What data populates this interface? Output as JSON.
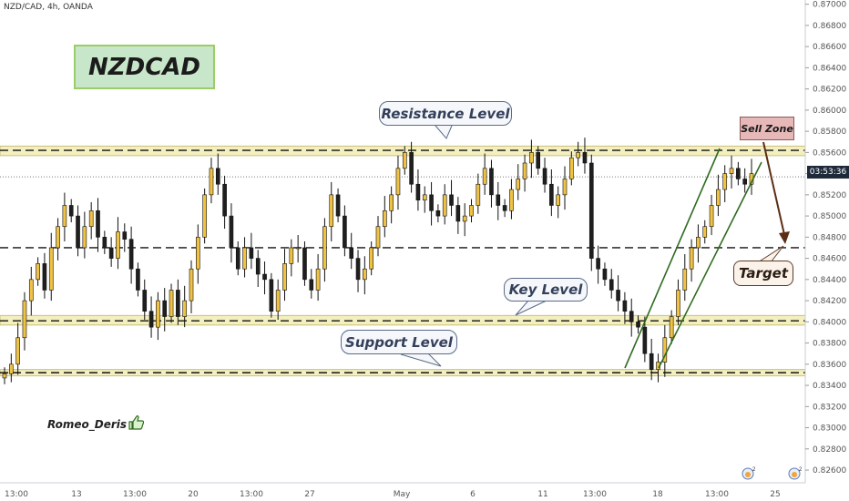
{
  "header": {
    "symbol": "NZD/CAD, 4h, OANDA"
  },
  "title": "NZDCAD",
  "callouts": {
    "resistance": "Resistance Level",
    "key": "Key Level",
    "support": "Support Level",
    "sell_zone": "Sell Zone",
    "target": "Target"
  },
  "signature": "Romeo_Deris",
  "current_price_label": "03:53:36",
  "event_badges": [
    "2",
    "2"
  ],
  "colors": {
    "zone_fill": "#f3efbf",
    "zone_border": "#c9c27a",
    "bull_candle": "#f0c244",
    "bear_candle": "#1f1f1f",
    "channel": "#2e6b1f",
    "arrow": "#5b2e15",
    "title_bg": "#c8e6c9"
  },
  "chart_data": {
    "type": "candlestick",
    "timeframe": "4h",
    "y_axis": {
      "ticks": [
        "0.87000",
        "0.86800",
        "0.86600",
        "0.86400",
        "0.86200",
        "0.86000",
        "0.85800",
        "0.85600",
        "0.85400",
        "0.85200",
        "0.85000",
        "0.84800",
        "0.84600",
        "0.84400",
        "0.84200",
        "0.84000",
        "0.83800",
        "0.83600",
        "0.83400",
        "0.83200",
        "0.83000",
        "0.82800",
        "0.82600"
      ],
      "range": [
        0.8248,
        0.8704
      ]
    },
    "x_axis": {
      "ticks": [
        "13:00",
        "13",
        "13:00",
        "20",
        "13:00",
        "27",
        "May",
        "6",
        "11",
        "13:00",
        "18",
        "13:00",
        "25"
      ]
    },
    "zones": [
      {
        "name": "Resistance Level",
        "low": 0.8557,
        "high": 0.8566
      },
      {
        "name": "Key Level",
        "low": 0.8397,
        "high": 0.8406
      },
      {
        "name": "Support Level",
        "low": 0.8349,
        "high": 0.8355
      }
    ],
    "dashed_levels": [
      0.8562,
      0.8401,
      0.847,
      0.8352
    ],
    "current_price": 0.8537,
    "close_series": [
      0.8351,
      0.836,
      0.8385,
      0.842,
      0.844,
      0.8455,
      0.843,
      0.847,
      0.849,
      0.851,
      0.85,
      0.847,
      0.849,
      0.8505,
      0.848,
      0.847,
      0.846,
      0.8485,
      0.8478,
      0.845,
      0.843,
      0.841,
      0.8395,
      0.842,
      0.8405,
      0.843,
      0.8405,
      0.842,
      0.845,
      0.848,
      0.852,
      0.8545,
      0.853,
      0.85,
      0.847,
      0.845,
      0.847,
      0.846,
      0.8445,
      0.844,
      0.841,
      0.843,
      0.8455,
      0.847,
      0.847,
      0.844,
      0.843,
      0.845,
      0.849,
      0.852,
      0.85,
      0.847,
      0.846,
      0.844,
      0.845,
      0.847,
      0.849,
      0.8505,
      0.852,
      0.8545,
      0.856,
      0.853,
      0.8515,
      0.852,
      0.8505,
      0.85,
      0.852,
      0.851,
      0.8495,
      0.85,
      0.851,
      0.853,
      0.8545,
      0.852,
      0.851,
      0.8505,
      0.8525,
      0.8535,
      0.855,
      0.856,
      0.8545,
      0.853,
      0.851,
      0.852,
      0.8535,
      0.8555,
      0.856,
      0.855,
      0.846,
      0.845,
      0.844,
      0.843,
      0.842,
      0.841,
      0.84,
      0.8395,
      0.837,
      0.8355,
      0.8362,
      0.8385,
      0.8405,
      0.843,
      0.845,
      0.847,
      0.848,
      0.849,
      0.851,
      0.8525,
      0.854,
      0.8545,
      0.8535,
      0.853,
      0.854
    ]
  }
}
